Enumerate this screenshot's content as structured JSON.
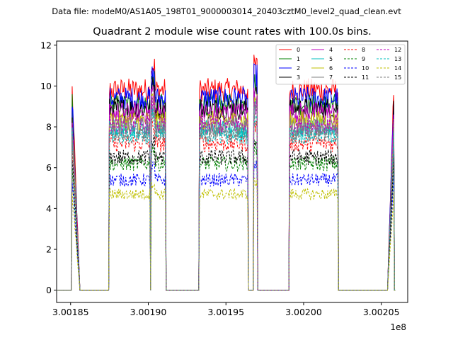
{
  "suptitle": "Data file: modeM0/AS1A05_198T01_9000003014_20403cztM0_level2_quad_clean.evt",
  "chart_data": {
    "type": "line",
    "title": "Quadrant 2 module wise count rates with 100.0s bins.",
    "xlabel": "",
    "ylabel": "",
    "x_offset_label": "1e8",
    "xlim": [
      3.001841,
      3.002067
    ],
    "ylim": [
      -0.6,
      12.2
    ],
    "xticks": [
      3.00185,
      3.0019,
      3.00195,
      3.002,
      3.00205
    ],
    "xtick_labels": [
      "3.00185",
      "3.00190",
      "3.00195",
      "3.00200",
      "3.00205"
    ],
    "yticks": [
      0,
      2,
      4,
      6,
      8,
      10,
      12
    ],
    "ytick_labels": [
      "0",
      "2",
      "4",
      "6",
      "8",
      "10",
      "12"
    ],
    "legend_position": "upper right",
    "segments": [
      {
        "start": 3.001851,
        "end": 3.001856,
        "profile": "edge_drop"
      },
      {
        "start": 3.001875,
        "end": 3.001901,
        "profile": "plateau"
      },
      {
        "start": 3.001902,
        "end": 3.001904,
        "profile": "spike"
      },
      {
        "start": 3.001904,
        "end": 3.001911,
        "profile": "plateau"
      },
      {
        "start": 3.001933,
        "end": 3.001964,
        "profile": "plateau"
      },
      {
        "start": 3.001968,
        "end": 3.00197,
        "profile": "spike"
      },
      {
        "start": 3.001991,
        "end": 3.002022,
        "profile": "plateau"
      },
      {
        "start": 3.002054,
        "end": 3.002058,
        "profile": "edge_rise"
      }
    ],
    "series": [
      {
        "name": "0",
        "color": "#ff0000",
        "dash": "solid",
        "level": 9.8
      },
      {
        "name": "1",
        "color": "#008000",
        "dash": "solid",
        "level": 9.1
      },
      {
        "name": "2",
        "color": "#0000ff",
        "dash": "solid",
        "level": 9.4
      },
      {
        "name": "3",
        "color": "#000000",
        "dash": "solid",
        "level": 8.9
      },
      {
        "name": "4",
        "color": "#bf00bf",
        "dash": "solid",
        "level": 8.7
      },
      {
        "name": "5",
        "color": "#00bfbf",
        "dash": "solid",
        "level": 7.9
      },
      {
        "name": "6",
        "color": "#bfbf00",
        "dash": "solid",
        "level": 8.3
      },
      {
        "name": "7",
        "color": "#808080",
        "dash": "solid",
        "level": 8.0
      },
      {
        "name": "8",
        "color": "#ff0000",
        "dash": "dashed",
        "level": 7.2
      },
      {
        "name": "9",
        "color": "#008000",
        "dash": "dashed",
        "level": 6.2
      },
      {
        "name": "10",
        "color": "#0000ff",
        "dash": "dashed",
        "level": 5.4
      },
      {
        "name": "11",
        "color": "#000000",
        "dash": "dashed",
        "level": 6.5
      },
      {
        "name": "12",
        "color": "#bf00bf",
        "dash": "dashed",
        "level": 8.1
      },
      {
        "name": "13",
        "color": "#00bfbf",
        "dash": "dashed",
        "level": 7.6
      },
      {
        "name": "14",
        "color": "#bfbf00",
        "dash": "dashed",
        "level": 4.7
      },
      {
        "name": "15",
        "color": "#808080",
        "dash": "dashed",
        "level": 7.7
      }
    ]
  }
}
